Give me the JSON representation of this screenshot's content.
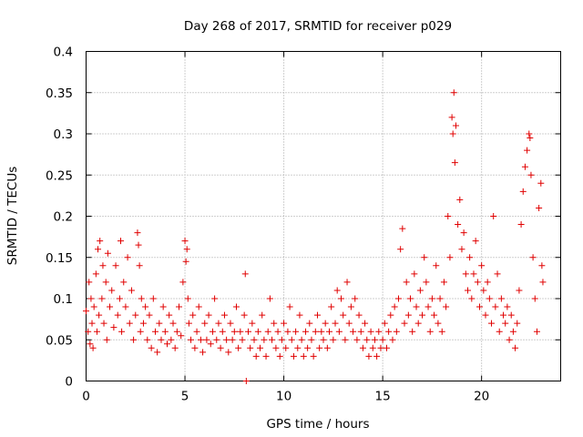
{
  "chart_data": {
    "type": "scatter",
    "title": "Day 268 of 2017, SRMTID for receiver p029",
    "xlabel": "GPS time / hours",
    "ylabel": "SRMTID / TECUs",
    "xlim": [
      0,
      24
    ],
    "ylim": [
      0,
      0.4
    ],
    "xticks": [
      0,
      5,
      10,
      15,
      20
    ],
    "xtick_labels": [
      "0",
      "5",
      "10",
      "15",
      "20"
    ],
    "yticks": [
      0,
      0.05,
      0.1,
      0.15,
      0.2,
      0.25,
      0.3,
      0.35,
      0.4
    ],
    "ytick_labels": [
      "0",
      "0.05",
      "0.1",
      "0.15",
      "0.2",
      "0.25",
      "0.3",
      "0.35",
      "0.4"
    ],
    "grid": true,
    "marker": "plus",
    "color": "#e00000",
    "series": [
      {
        "name": "SRMTID",
        "points": [
          [
            0.0,
            0.085
          ],
          [
            0.1,
            0.06
          ],
          [
            0.15,
            0.12
          ],
          [
            0.2,
            0.045
          ],
          [
            0.25,
            0.1
          ],
          [
            0.3,
            0.07
          ],
          [
            0.35,
            0.04
          ],
          [
            0.4,
            0.09
          ],
          [
            0.5,
            0.13
          ],
          [
            0.55,
            0.06
          ],
          [
            0.6,
            0.16
          ],
          [
            0.65,
            0.08
          ],
          [
            0.7,
            0.17
          ],
          [
            0.8,
            0.1
          ],
          [
            0.85,
            0.14
          ],
          [
            0.9,
            0.07
          ],
          [
            1.0,
            0.12
          ],
          [
            1.05,
            0.05
          ],
          [
            1.1,
            0.155
          ],
          [
            1.2,
            0.09
          ],
          [
            1.3,
            0.11
          ],
          [
            1.4,
            0.065
          ],
          [
            1.5,
            0.14
          ],
          [
            1.6,
            0.08
          ],
          [
            1.7,
            0.1
          ],
          [
            1.75,
            0.17
          ],
          [
            1.8,
            0.06
          ],
          [
            1.9,
            0.12
          ],
          [
            2.0,
            0.09
          ],
          [
            2.1,
            0.15
          ],
          [
            2.2,
            0.07
          ],
          [
            2.3,
            0.11
          ],
          [
            2.4,
            0.05
          ],
          [
            2.5,
            0.08
          ],
          [
            2.6,
            0.18
          ],
          [
            2.65,
            0.165
          ],
          [
            2.7,
            0.14
          ],
          [
            2.75,
            0.06
          ],
          [
            2.8,
            0.1
          ],
          [
            2.9,
            0.07
          ],
          [
            3.0,
            0.09
          ],
          [
            3.1,
            0.05
          ],
          [
            3.2,
            0.08
          ],
          [
            3.3,
            0.04
          ],
          [
            3.4,
            0.1
          ],
          [
            3.5,
            0.06
          ],
          [
            3.6,
            0.035
          ],
          [
            3.7,
            0.07
          ],
          [
            3.8,
            0.05
          ],
          [
            3.9,
            0.09
          ],
          [
            4.0,
            0.06
          ],
          [
            4.1,
            0.045
          ],
          [
            4.2,
            0.08
          ],
          [
            4.3,
            0.05
          ],
          [
            4.4,
            0.07
          ],
          [
            4.5,
            0.04
          ],
          [
            4.6,
            0.06
          ],
          [
            4.7,
            0.09
          ],
          [
            4.8,
            0.055
          ],
          [
            4.9,
            0.12
          ],
          [
            5.0,
            0.17
          ],
          [
            5.05,
            0.145
          ],
          [
            5.1,
            0.16
          ],
          [
            5.15,
            0.1
          ],
          [
            5.2,
            0.07
          ],
          [
            5.3,
            0.05
          ],
          [
            5.4,
            0.08
          ],
          [
            5.5,
            0.04
          ],
          [
            5.6,
            0.06
          ],
          [
            5.7,
            0.09
          ],
          [
            5.8,
            0.05
          ],
          [
            5.9,
            0.035
          ],
          [
            6.0,
            0.07
          ],
          [
            6.1,
            0.05
          ],
          [
            6.2,
            0.08
          ],
          [
            6.3,
            0.045
          ],
          [
            6.4,
            0.06
          ],
          [
            6.5,
            0.1
          ],
          [
            6.6,
            0.05
          ],
          [
            6.7,
            0.07
          ],
          [
            6.8,
            0.04
          ],
          [
            6.9,
            0.06
          ],
          [
            7.0,
            0.08
          ],
          [
            7.1,
            0.05
          ],
          [
            7.2,
            0.035
          ],
          [
            7.3,
            0.07
          ],
          [
            7.4,
            0.05
          ],
          [
            7.5,
            0.06
          ],
          [
            7.6,
            0.09
          ],
          [
            7.7,
            0.04
          ],
          [
            7.8,
            0.06
          ],
          [
            7.9,
            0.05
          ],
          [
            8.0,
            0.08
          ],
          [
            8.05,
            0.13
          ],
          [
            8.1,
            0.0
          ],
          [
            8.2,
            0.06
          ],
          [
            8.3,
            0.04
          ],
          [
            8.4,
            0.07
          ],
          [
            8.5,
            0.05
          ],
          [
            8.6,
            0.03
          ],
          [
            8.7,
            0.06
          ],
          [
            8.8,
            0.04
          ],
          [
            8.9,
            0.08
          ],
          [
            9.0,
            0.05
          ],
          [
            9.1,
            0.03
          ],
          [
            9.2,
            0.06
          ],
          [
            9.3,
            0.1
          ],
          [
            9.4,
            0.05
          ],
          [
            9.5,
            0.07
          ],
          [
            9.6,
            0.04
          ],
          [
            9.7,
            0.06
          ],
          [
            9.8,
            0.03
          ],
          [
            9.9,
            0.05
          ],
          [
            10.0,
            0.07
          ],
          [
            10.1,
            0.04
          ],
          [
            10.2,
            0.06
          ],
          [
            10.3,
            0.09
          ],
          [
            10.4,
            0.05
          ],
          [
            10.5,
            0.03
          ],
          [
            10.6,
            0.06
          ],
          [
            10.7,
            0.04
          ],
          [
            10.8,
            0.08
          ],
          [
            10.9,
            0.05
          ],
          [
            11.0,
            0.03
          ],
          [
            11.1,
            0.06
          ],
          [
            11.2,
            0.04
          ],
          [
            11.3,
            0.07
          ],
          [
            11.4,
            0.05
          ],
          [
            11.5,
            0.03
          ],
          [
            11.6,
            0.06
          ],
          [
            11.7,
            0.08
          ],
          [
            11.8,
            0.04
          ],
          [
            11.9,
            0.06
          ],
          [
            12.0,
            0.05
          ],
          [
            12.1,
            0.07
          ],
          [
            12.2,
            0.04
          ],
          [
            12.3,
            0.06
          ],
          [
            12.4,
            0.09
          ],
          [
            12.5,
            0.05
          ],
          [
            12.6,
            0.07
          ],
          [
            12.7,
            0.11
          ],
          [
            12.8,
            0.06
          ],
          [
            12.9,
            0.1
          ],
          [
            13.0,
            0.08
          ],
          [
            13.1,
            0.05
          ],
          [
            13.2,
            0.12
          ],
          [
            13.3,
            0.07
          ],
          [
            13.4,
            0.09
          ],
          [
            13.5,
            0.06
          ],
          [
            13.6,
            0.1
          ],
          [
            13.7,
            0.05
          ],
          [
            13.8,
            0.08
          ],
          [
            13.9,
            0.06
          ],
          [
            14.0,
            0.04
          ],
          [
            14.1,
            0.07
          ],
          [
            14.2,
            0.05
          ],
          [
            14.3,
            0.03
          ],
          [
            14.4,
            0.06
          ],
          [
            14.5,
            0.04
          ],
          [
            14.6,
            0.05
          ],
          [
            14.7,
            0.03
          ],
          [
            14.8,
            0.06
          ],
          [
            14.9,
            0.04
          ],
          [
            15.0,
            0.05
          ],
          [
            15.1,
            0.07
          ],
          [
            15.2,
            0.04
          ],
          [
            15.3,
            0.06
          ],
          [
            15.4,
            0.08
          ],
          [
            15.5,
            0.05
          ],
          [
            15.6,
            0.09
          ],
          [
            15.7,
            0.06
          ],
          [
            15.8,
            0.1
          ],
          [
            15.9,
            0.16
          ],
          [
            16.0,
            0.185
          ],
          [
            16.1,
            0.07
          ],
          [
            16.2,
            0.12
          ],
          [
            16.3,
            0.08
          ],
          [
            16.4,
            0.1
          ],
          [
            16.5,
            0.06
          ],
          [
            16.6,
            0.13
          ],
          [
            16.7,
            0.09
          ],
          [
            16.8,
            0.07
          ],
          [
            16.9,
            0.11
          ],
          [
            17.0,
            0.08
          ],
          [
            17.1,
            0.15
          ],
          [
            17.2,
            0.12
          ],
          [
            17.3,
            0.09
          ],
          [
            17.4,
            0.06
          ],
          [
            17.5,
            0.1
          ],
          [
            17.6,
            0.08
          ],
          [
            17.7,
            0.14
          ],
          [
            17.8,
            0.07
          ],
          [
            17.9,
            0.1
          ],
          [
            18.0,
            0.06
          ],
          [
            18.1,
            0.12
          ],
          [
            18.2,
            0.09
          ],
          [
            18.3,
            0.2
          ],
          [
            18.4,
            0.15
          ],
          [
            18.5,
            0.32
          ],
          [
            18.55,
            0.3
          ],
          [
            18.6,
            0.35
          ],
          [
            18.65,
            0.265
          ],
          [
            18.7,
            0.31
          ],
          [
            18.8,
            0.19
          ],
          [
            18.9,
            0.22
          ],
          [
            19.0,
            0.16
          ],
          [
            19.1,
            0.18
          ],
          [
            19.2,
            0.13
          ],
          [
            19.3,
            0.11
          ],
          [
            19.4,
            0.15
          ],
          [
            19.5,
            0.1
          ],
          [
            19.6,
            0.13
          ],
          [
            19.7,
            0.17
          ],
          [
            19.8,
            0.12
          ],
          [
            19.9,
            0.09
          ],
          [
            20.0,
            0.14
          ],
          [
            20.1,
            0.11
          ],
          [
            20.2,
            0.08
          ],
          [
            20.3,
            0.12
          ],
          [
            20.4,
            0.1
          ],
          [
            20.5,
            0.07
          ],
          [
            20.6,
            0.2
          ],
          [
            20.7,
            0.09
          ],
          [
            20.8,
            0.13
          ],
          [
            20.9,
            0.06
          ],
          [
            21.0,
            0.1
          ],
          [
            21.1,
            0.08
          ],
          [
            21.2,
            0.07
          ],
          [
            21.3,
            0.09
          ],
          [
            21.4,
            0.05
          ],
          [
            21.5,
            0.08
          ],
          [
            21.6,
            0.06
          ],
          [
            21.7,
            0.04
          ],
          [
            21.8,
            0.07
          ],
          [
            21.9,
            0.11
          ],
          [
            22.0,
            0.19
          ],
          [
            22.1,
            0.23
          ],
          [
            22.2,
            0.26
          ],
          [
            22.3,
            0.28
          ],
          [
            22.4,
            0.3
          ],
          [
            22.45,
            0.295
          ],
          [
            22.5,
            0.25
          ],
          [
            22.6,
            0.15
          ],
          [
            22.7,
            0.1
          ],
          [
            22.8,
            0.06
          ],
          [
            22.9,
            0.21
          ],
          [
            23.0,
            0.24
          ],
          [
            23.05,
            0.14
          ],
          [
            23.1,
            0.12
          ]
        ]
      }
    ]
  }
}
